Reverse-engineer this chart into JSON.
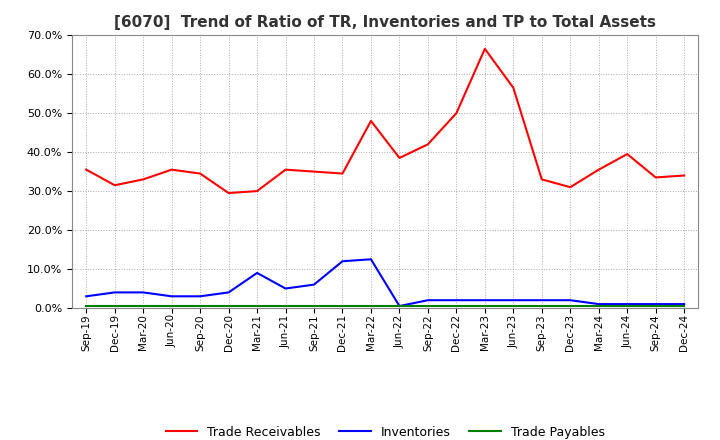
{
  "title": "[6070]  Trend of Ratio of TR, Inventories and TP to Total Assets",
  "x_labels": [
    "Sep-19",
    "Dec-19",
    "Mar-20",
    "Jun-20",
    "Sep-20",
    "Dec-20",
    "Mar-21",
    "Jun-21",
    "Sep-21",
    "Dec-21",
    "Mar-22",
    "Jun-22",
    "Sep-22",
    "Dec-22",
    "Mar-23",
    "Jun-23",
    "Sep-23",
    "Dec-23",
    "Mar-24",
    "Jun-24",
    "Sep-24",
    "Dec-24"
  ],
  "trade_receivables": [
    0.355,
    0.315,
    0.33,
    0.355,
    0.345,
    0.295,
    0.3,
    0.355,
    0.35,
    0.345,
    0.48,
    0.385,
    0.42,
    0.5,
    0.665,
    0.565,
    0.33,
    0.31,
    0.355,
    0.395,
    0.335,
    0.34
  ],
  "inventories": [
    0.03,
    0.04,
    0.04,
    0.03,
    0.03,
    0.04,
    0.09,
    0.05,
    0.06,
    0.12,
    0.125,
    0.005,
    0.02,
    0.02,
    0.02,
    0.02,
    0.02,
    0.02,
    0.01,
    0.01,
    0.01,
    0.01
  ],
  "trade_payables": [
    0.005,
    0.005,
    0.005,
    0.005,
    0.005,
    0.005,
    0.005,
    0.005,
    0.005,
    0.005,
    0.005,
    0.005,
    0.005,
    0.005,
    0.005,
    0.005,
    0.005,
    0.005,
    0.005,
    0.005,
    0.005,
    0.005
  ],
  "tr_color": "#FF0000",
  "inv_color": "#0000FF",
  "tp_color": "#008000",
  "ylim": [
    0.0,
    0.7
  ],
  "yticks": [
    0.0,
    0.1,
    0.2,
    0.3,
    0.4,
    0.5,
    0.6,
    0.7
  ],
  "background_color": "#ffffff",
  "grid_color": "#aaaaaa",
  "title_fontsize": 11,
  "legend_labels": [
    "Trade Receivables",
    "Inventories",
    "Trade Payables"
  ]
}
